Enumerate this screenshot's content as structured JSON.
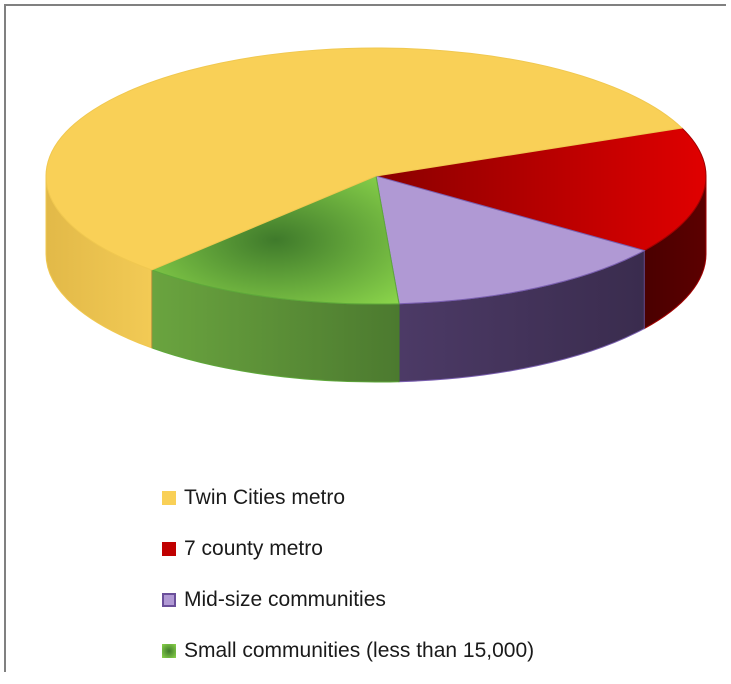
{
  "chart_data": {
    "type": "pie",
    "style": "3d",
    "legend_position": "bottom",
    "slices": [
      {
        "name": "Twin Cities metro",
        "value": 57,
        "color": "#f9d057",
        "side_color": "#d9b040"
      },
      {
        "name": "7 county metro",
        "value": 16,
        "color": "#c00000",
        "side_color": "#5a0000"
      },
      {
        "name": "Mid-size communities",
        "value": 14,
        "color": "#b099d4",
        "side_color": "#4b3a64"
      },
      {
        "name": "Small communities (less than 15,000)",
        "value": 13,
        "color": "#6cc04a",
        "side_color": "#3e6a25"
      }
    ]
  }
}
